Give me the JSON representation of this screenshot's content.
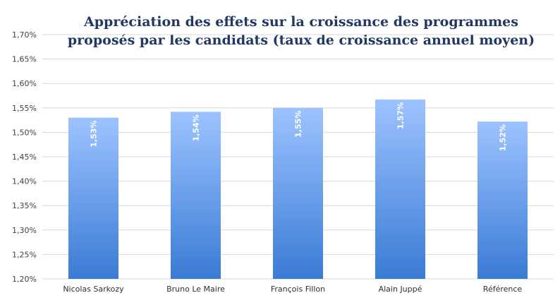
{
  "chart_data": {
    "type": "bar",
    "title_line1": "Appréciation des effets sur la croissance des programmes",
    "title_line2": "proposés par les candidats (taux de croissance annuel moyen)",
    "categories": [
      "Nicolas Sarkozy",
      "Bruno Le Maire",
      "François Fillon",
      "Alain Juppé",
      "Référence"
    ],
    "values": [
      1.53,
      1.542,
      1.55,
      1.567,
      1.522
    ],
    "data_labels": [
      "1,53%",
      "1,54%",
      "1,55%",
      "1,57%",
      "1,52%"
    ],
    "ylim": [
      1.2,
      1.7
    ],
    "yticks": [
      1.2,
      1.25,
      1.3,
      1.35,
      1.4,
      1.45,
      1.5,
      1.55,
      1.6,
      1.65,
      1.7
    ],
    "ytick_labels": [
      "1,20%",
      "1,25%",
      "1,30%",
      "1,35%",
      "1,40%",
      "1,45%",
      "1,50%",
      "1,55%",
      "1,60%",
      "1,65%",
      "1,70%"
    ],
    "grid": true,
    "colors": {
      "bar_top": "#9dc3ff",
      "bar_bottom": "#3a7bd5",
      "grid": "#d9d9d9",
      "title": "#1f3864"
    }
  }
}
